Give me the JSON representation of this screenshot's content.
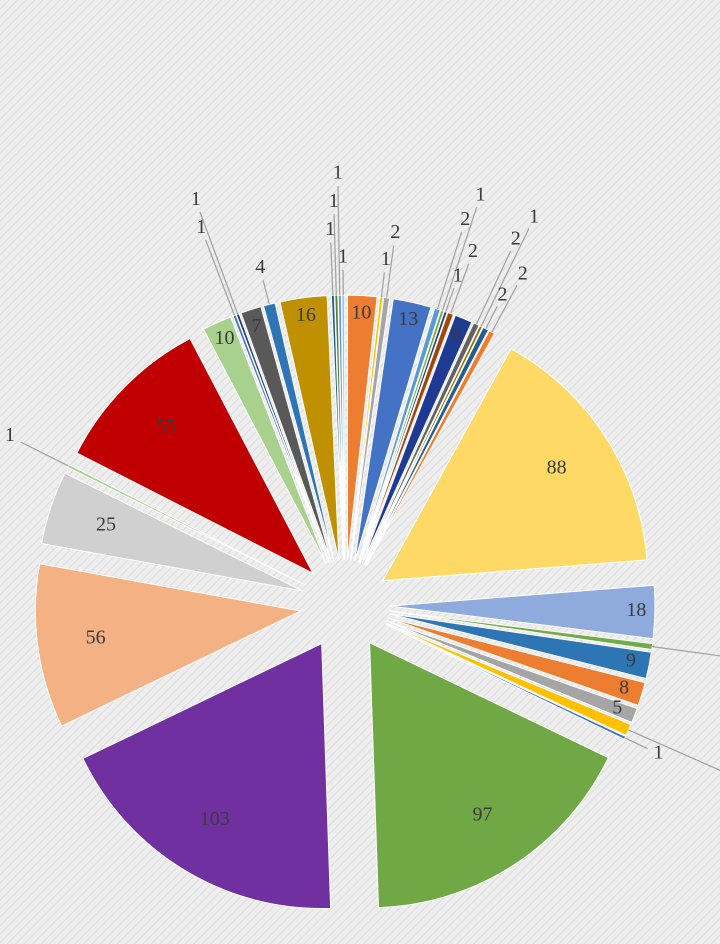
{
  "chart_data": {
    "type": "pie",
    "values": [
      10,
      1,
      2,
      13,
      2,
      1,
      1,
      2,
      6,
      2,
      1,
      2,
      2,
      88,
      18,
      2,
      9,
      8,
      5,
      4,
      1,
      97,
      103,
      56,
      25,
      1,
      55,
      10,
      1,
      1,
      7,
      4,
      16,
      1,
      1,
      1,
      1
    ],
    "colors": [
      "#ed7d31",
      "#ffc000",
      "#a5a5a5",
      "#4472c4",
      "#5b9bd5",
      "#70ad47",
      "#264478",
      "#9e480e",
      "#1f3a93",
      "#636363",
      "#997300",
      "#255e91",
      "#ed7d31",
      "#ffd966",
      "#8faadc",
      "#70ad47",
      "#2e75b6",
      "#ed7d31",
      "#a5a5a5",
      "#ffc000",
      "#4472c4",
      "#70a845",
      "#7030a0",
      "#f4b183",
      "#d0d0d0",
      "#a9d18e",
      "#c00000",
      "#a9d18e",
      "#4472c4",
      "#264478",
      "#595959",
      "#2e75b6",
      "#bf9000",
      "#255e91",
      "#548235",
      "#5b9bd5",
      "#9dc3e6"
    ]
  }
}
